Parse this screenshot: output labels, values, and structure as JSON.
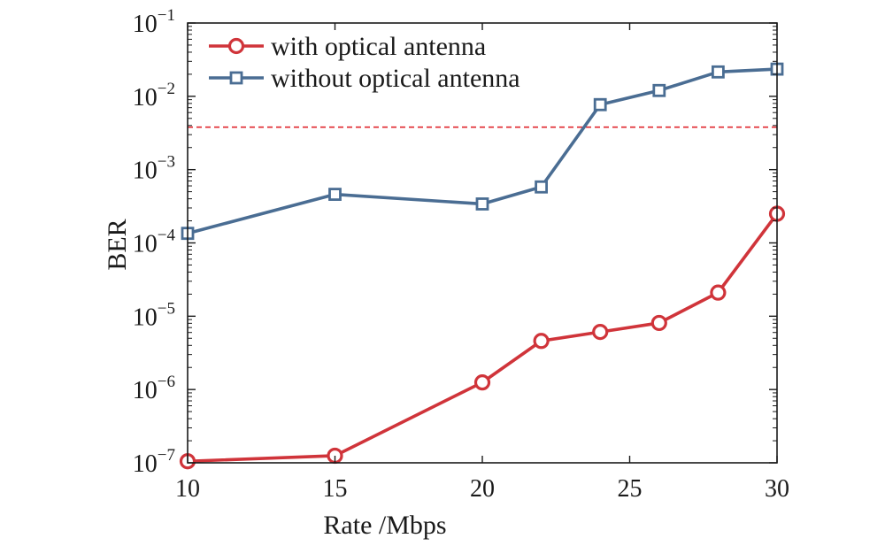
{
  "chart_data": {
    "type": "line",
    "title": "",
    "xlabel": "Rate /Mbps",
    "ylabel": "BER",
    "yscale": "log",
    "xlim": [
      10,
      30
    ],
    "ylim_exponent": [
      -7,
      -1
    ],
    "xticks": [
      10,
      15,
      20,
      25,
      30
    ],
    "xtick_labels": [
      "10",
      "15",
      "20",
      "25",
      "30"
    ],
    "ytick_exponents": [
      -7,
      -6,
      -5,
      -4,
      -3,
      -2,
      -1
    ],
    "ytick_base": "10",
    "ytick_exponent_labels": [
      "−7",
      "−6",
      "−5",
      "−4",
      "−3",
      "−2",
      "−1"
    ],
    "threshold": {
      "value": 0.0038,
      "color": "#e0262d",
      "style": "dashed"
    },
    "legend_position": "top-left",
    "series": [
      {
        "name": "with optical antenna",
        "color": "#d0343a",
        "marker": "circle",
        "x": [
          10,
          15,
          20,
          22,
          24,
          26,
          28,
          30
        ],
        "y": [
          1.05e-07,
          1.25e-07,
          1.25e-06,
          4.6e-06,
          6.1e-06,
          8.1e-06,
          2.1e-05,
          0.00025
        ]
      },
      {
        "name": "without optical antenna",
        "color": "#4a6d93",
        "marker": "square",
        "x": [
          10,
          15,
          20,
          22,
          24,
          26,
          28,
          30
        ],
        "y": [
          0.000135,
          0.00046,
          0.00034,
          0.00058,
          0.0077,
          0.012,
          0.0215,
          0.0235
        ]
      }
    ]
  }
}
